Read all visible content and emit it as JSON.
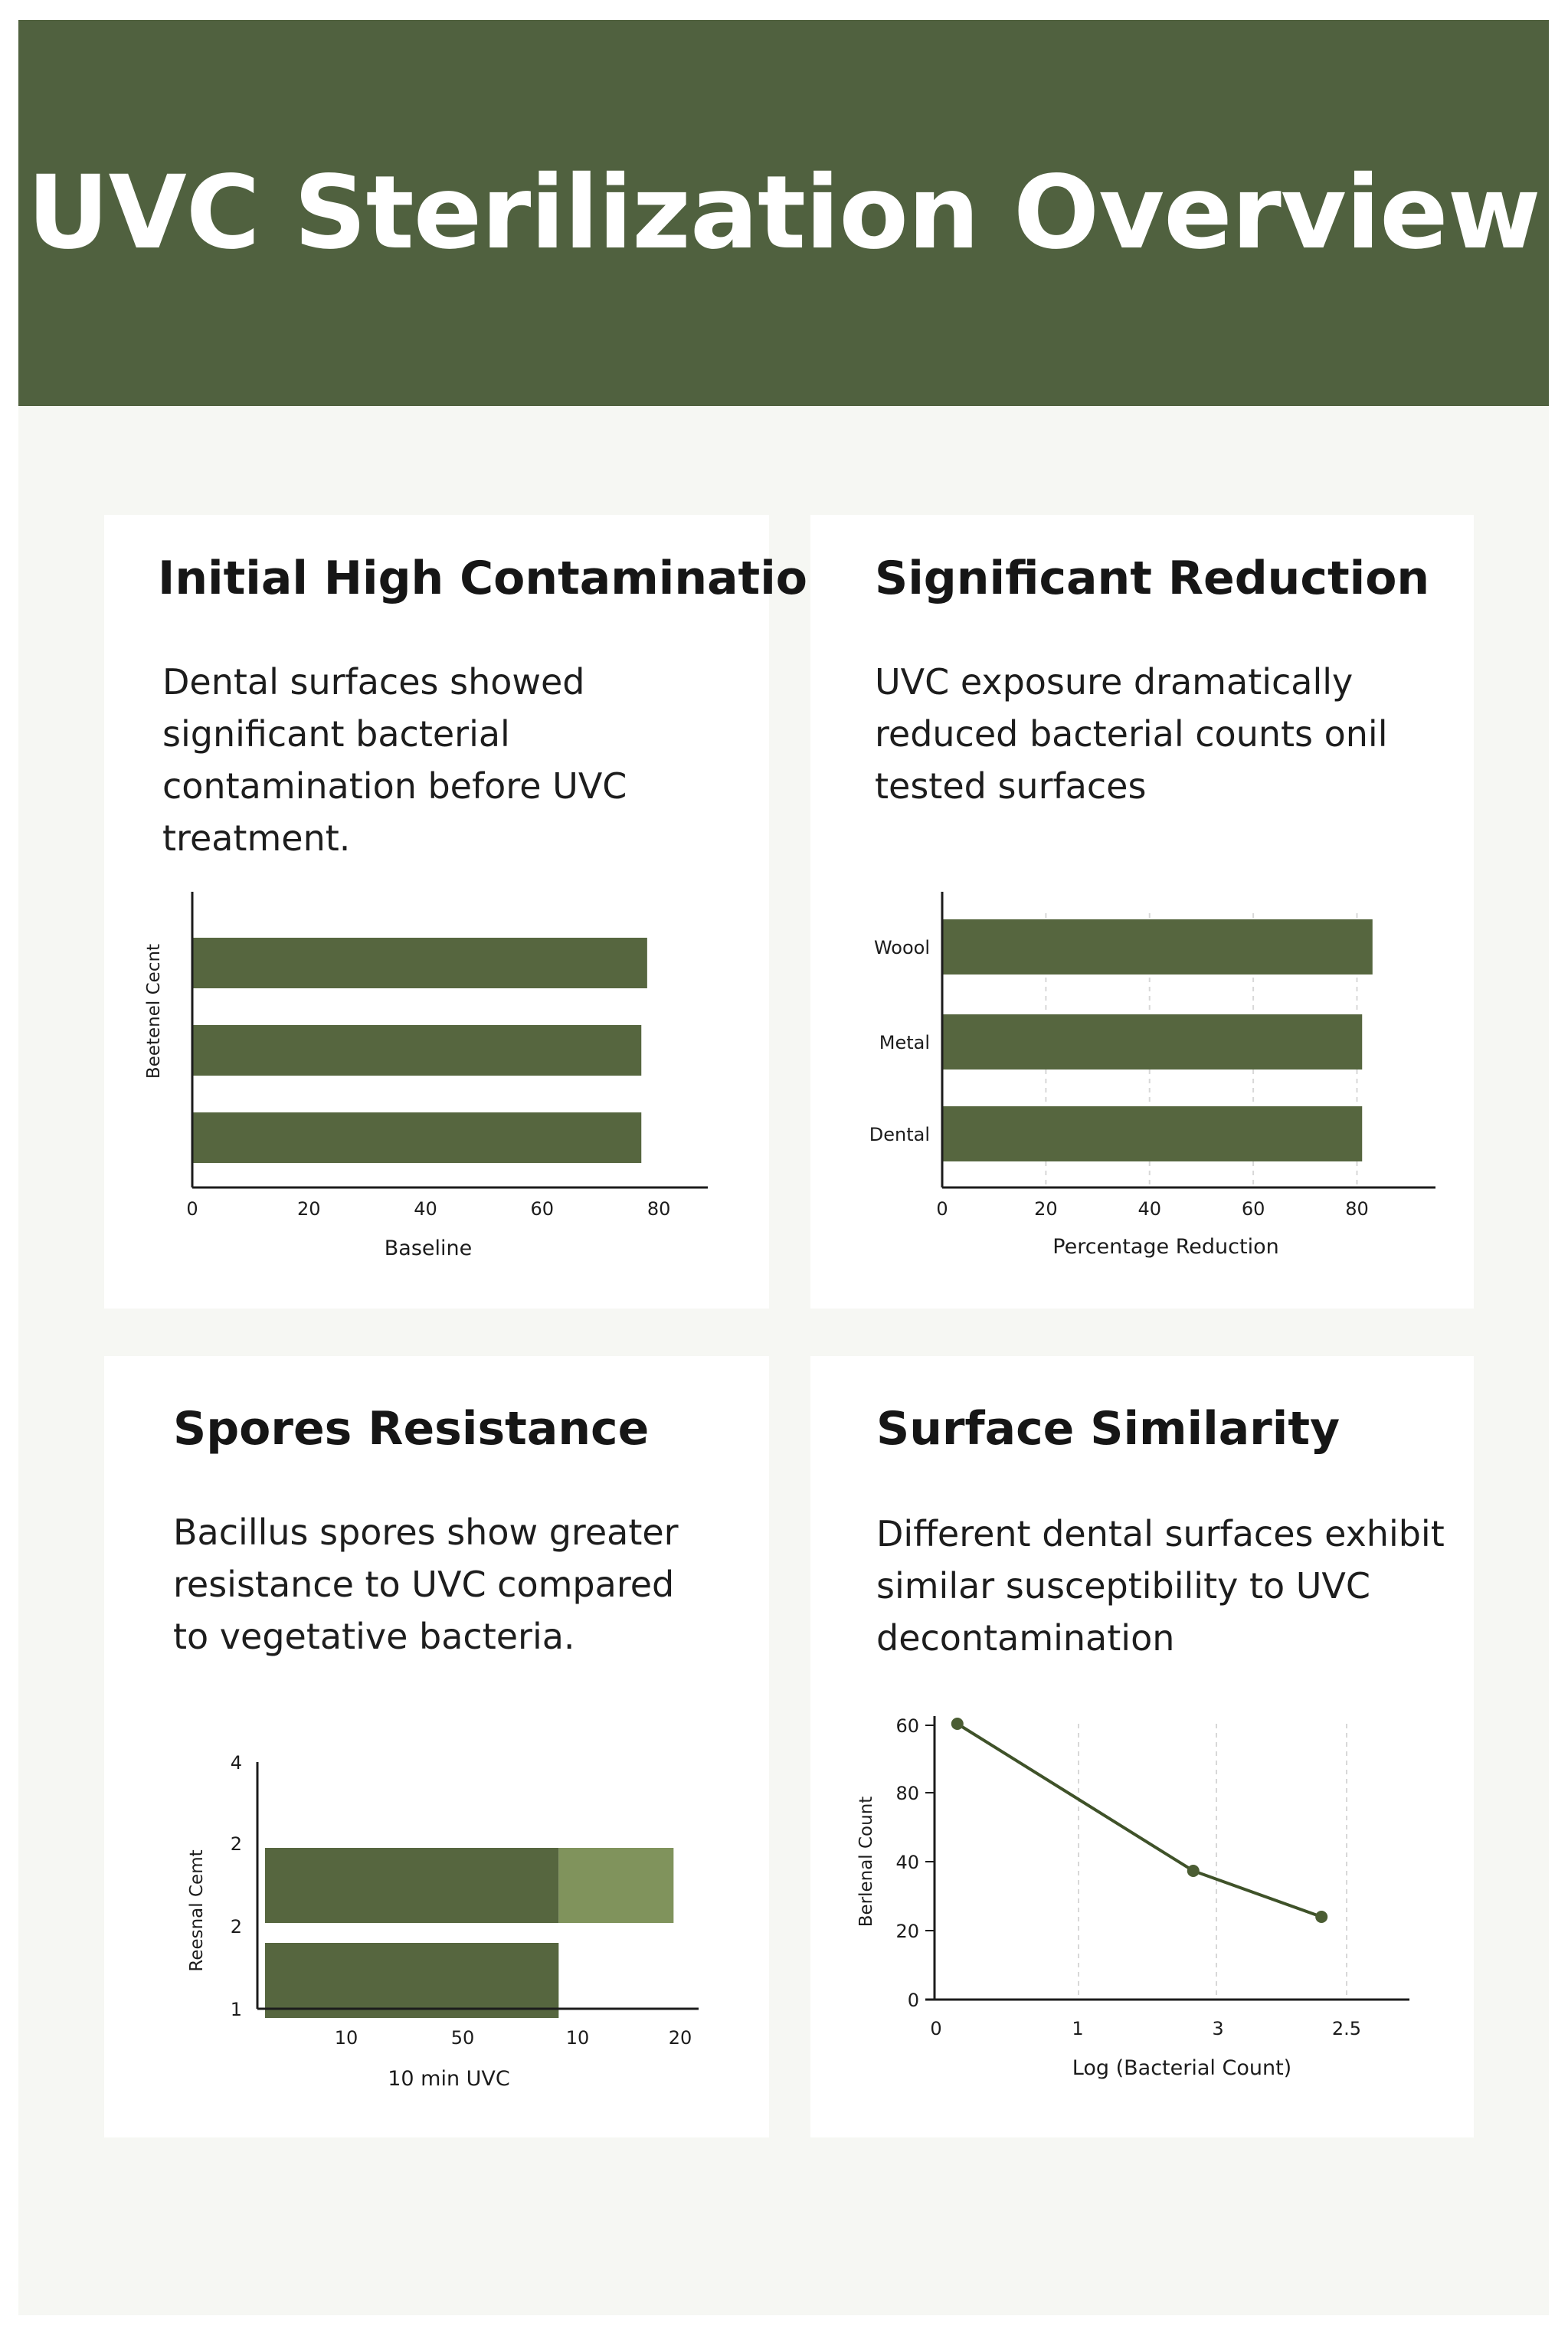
{
  "header": {
    "title": "UVC Sterilization Overview"
  },
  "cards": [
    {
      "title": "Initial High Contamination",
      "body": "Dental surfaces showed significant bacterial contamination before UVC treatment."
    },
    {
      "title": "Significant Reduction",
      "body": "UVC exposure dramatically reduced bacterial counts onil tested surfaces"
    },
    {
      "title": "Spores Resistance",
      "body": "Bacillus spores show greater resistance to UVC compared to vegetative bacteria."
    },
    {
      "title": "Surface Similarity",
      "body": "Different dental surfaces exhibit similar susceptibility to UVC decontamination"
    }
  ],
  "colors": {
    "bar": "#56663f",
    "bar_light": "#80935c",
    "header": "#50613f",
    "axis": "#1c1c1c",
    "grid": "#d8d8d8"
  },
  "chart_data": [
    {
      "type": "bar",
      "orientation": "horizontal",
      "values": [
        78,
        77,
        77
      ],
      "xlabel": "Baseline",
      "ylabel": "Beetenel Cecnt",
      "xticks": [
        "0",
        "20",
        "40",
        "60",
        "80"
      ],
      "xlim": [
        0,
        88
      ]
    },
    {
      "type": "bar",
      "orientation": "horizontal",
      "categories": [
        "Woool",
        "Metal",
        "Dental"
      ],
      "values": [
        83,
        81,
        81
      ],
      "xlabel": "Percentage Reduction",
      "xticks": [
        "0",
        "20",
        "40",
        "60",
        "80"
      ],
      "xlim": [
        0,
        95
      ],
      "grid": true
    },
    {
      "type": "bar",
      "orientation": "horizontal",
      "stacked": true,
      "series": [
        {
          "values": [
            9.2,
            9.2
          ],
          "color": "#56663f"
        },
        {
          "values": [
            3.6,
            0
          ],
          "color": "#80935c"
        }
      ],
      "xlabel": "10 min UVC",
      "ylabel": "Reesnal Cemt",
      "xticks": [
        "10",
        "50",
        "10",
        "20"
      ],
      "yticks": [
        "4",
        "2",
        "2",
        "1"
      ],
      "xlim": [
        0,
        13.2
      ]
    },
    {
      "type": "line",
      "x": [
        0.2,
        2.5,
        3.75
      ],
      "y": [
        90,
        42,
        27
      ],
      "xlabel": "Log (Bacterial Count)",
      "ylabel": "Berlenal Count",
      "xticks": [
        "0",
        "1",
        "3",
        "2.5"
      ],
      "yticks": [
        "0",
        "20",
        "40",
        "60",
        "80"
      ],
      "xlim": [
        0,
        4.6
      ],
      "ylim": [
        0,
        100
      ],
      "grid": true
    }
  ]
}
